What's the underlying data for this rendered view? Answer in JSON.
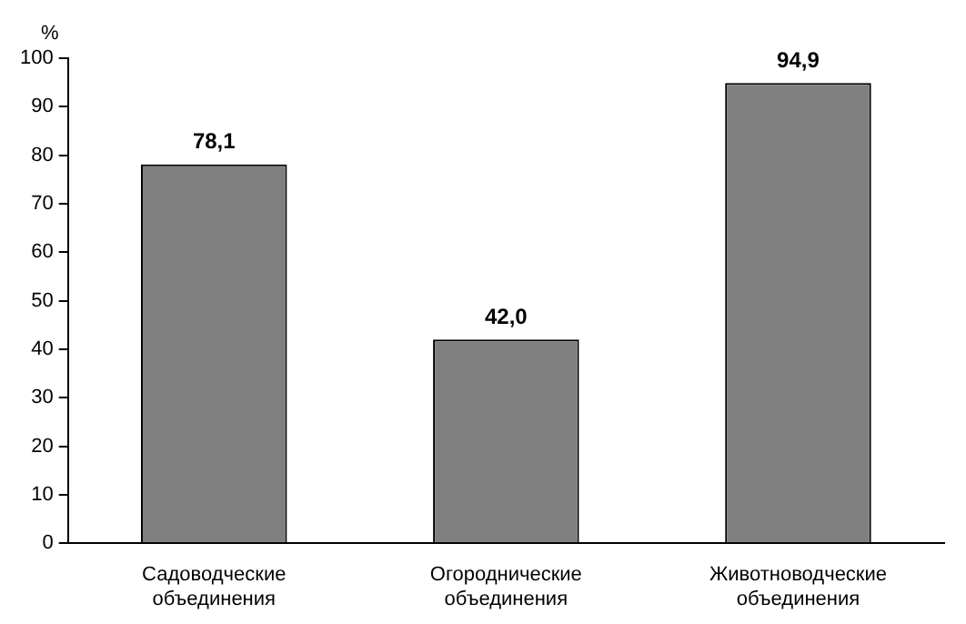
{
  "chart_data": {
    "type": "bar",
    "ylabel": "%",
    "categories": [
      "Садоводческие объединения",
      "Огороднические объединения",
      "Животноводческие объединения"
    ],
    "values": [
      78.1,
      42.0,
      94.9
    ],
    "color": "#808080",
    "value_labels": [
      "78,1",
      "42,0",
      "94,9"
    ],
    "ylim": [
      0,
      100
    ],
    "yticks": [
      0,
      10,
      20,
      30,
      40,
      50,
      60,
      70,
      80,
      90,
      100
    ],
    "grid": false,
    "legend": false
  }
}
